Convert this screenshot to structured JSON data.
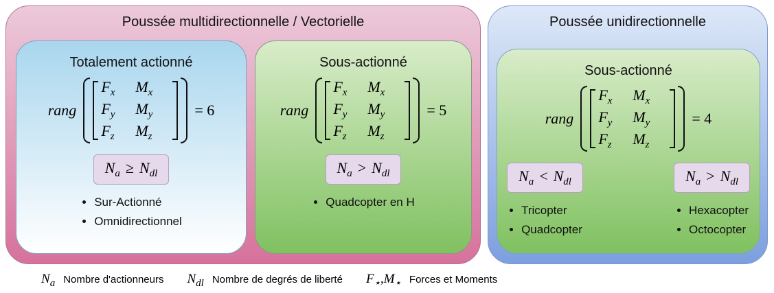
{
  "groups": [
    {
      "title": "Poussée multidirectionnelle / Vectorielle",
      "panels": [
        {
          "title": "Totalement actionné",
          "rank": "= 6",
          "columns": [
            {
              "condition": [
                {
                  "base": "N",
                  "sub": "a"
                },
                {
                  "text": "≥"
                },
                {
                  "base": "N",
                  "sub": "dl"
                }
              ],
              "items": [
                "Sur-Actionné",
                "Omnidirectionnel"
              ]
            }
          ]
        },
        {
          "title": "Sous-actionné",
          "rank": "= 5",
          "columns": [
            {
              "condition": [
                {
                  "base": "N",
                  "sub": "a"
                },
                {
                  "text": ">"
                },
                {
                  "base": "N",
                  "sub": "dl"
                }
              ],
              "items": [
                "Quadcopter en H"
              ]
            }
          ]
        }
      ]
    },
    {
      "title": "Poussée unidirectionnelle",
      "panels": [
        {
          "title": "Sous-actionné",
          "rank": "= 4",
          "columns": [
            {
              "condition": [
                {
                  "base": "N",
                  "sub": "a"
                },
                {
                  "text": "<"
                },
                {
                  "base": "N",
                  "sub": "dl"
                }
              ],
              "items": [
                "Tricopter",
                "Quadcopter"
              ]
            },
            {
              "condition": [
                {
                  "base": "N",
                  "sub": "a"
                },
                {
                  "text": ">"
                },
                {
                  "base": "N",
                  "sub": "dl"
                }
              ],
              "items": [
                "Hexacopter",
                "Octocopter"
              ]
            }
          ]
        }
      ]
    }
  ],
  "rank_label": "rang",
  "matrix": [
    [
      {
        "base": "F",
        "sub": "x"
      },
      {
        "base": "M",
        "sub": "x"
      }
    ],
    [
      {
        "base": "F",
        "sub": "y"
      },
      {
        "base": "M",
        "sub": "y"
      }
    ],
    [
      {
        "base": "F",
        "sub": "z"
      },
      {
        "base": "M",
        "sub": "z"
      }
    ]
  ],
  "legend": [
    {
      "symbol": [
        {
          "base": "N",
          "sub": "a"
        }
      ],
      "text": "Nombre d'actionneurs"
    },
    {
      "symbol": [
        {
          "base": "N",
          "sub": "dl"
        }
      ],
      "text": "Nombre de degrés de liberté"
    },
    {
      "symbol": [
        {
          "base": "F",
          "sub": "⋆"
        },
        {
          "text": ","
        },
        {
          "base": "M",
          "sub": "⋆"
        }
      ],
      "text": "Forces et Moments"
    }
  ]
}
